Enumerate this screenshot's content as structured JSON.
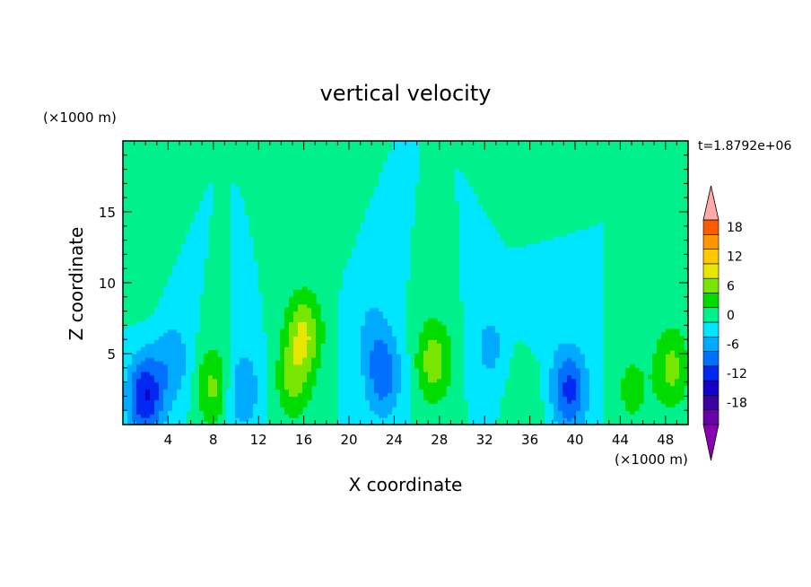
{
  "chart_data": {
    "type": "heatmap",
    "title": "vertical velocity",
    "xlabel": "X coordinate",
    "ylabel": "Z coordinate",
    "x_unit": "(×1000 m)",
    "y_unit": "(×1000 m)",
    "time_label": "t=1.8792e+06",
    "xlim": [
      0,
      50
    ],
    "ylim": [
      0,
      20
    ],
    "x_ticks": [
      4,
      8,
      12,
      16,
      20,
      24,
      28,
      32,
      36,
      40,
      44,
      48
    ],
    "y_ticks": [
      5,
      10,
      15
    ],
    "colorbar": {
      "levels": [
        -21,
        -18,
        -15,
        -12,
        -9,
        -6,
        -3,
        0,
        3,
        6,
        9,
        12,
        15,
        18,
        21
      ],
      "tick_values": [
        18,
        12,
        6,
        0,
        -6,
        -12,
        -18
      ],
      "colors": [
        "#6a00aa",
        "#3c00a0",
        "#1400c8",
        "#0028f0",
        "#0070ff",
        "#00aaff",
        "#00e6ff",
        "#00f08c",
        "#00dc00",
        "#78e600",
        "#e6e600",
        "#ffc800",
        "#ff9600",
        "#ff5a00",
        "#ff1e00"
      ],
      "under_color": "#8c00b4",
      "over_color": "#ffaaaa"
    },
    "features": [
      {
        "x": 2.0,
        "z": 2.0,
        "w": -12
      },
      {
        "x": 4.5,
        "z": 4.5,
        "w": -5
      },
      {
        "x": 8.0,
        "z": 2.7,
        "w": 7
      },
      {
        "x": 10.5,
        "z": 2.5,
        "w": -6
      },
      {
        "x": 16.0,
        "z": 6.5,
        "w": 9
      },
      {
        "x": 15.0,
        "z": 3.0,
        "w": 6
      },
      {
        "x": 17.5,
        "z": 14.5,
        "w": 1.5
      },
      {
        "x": 23.0,
        "z": 3.5,
        "w": -8
      },
      {
        "x": 22.0,
        "z": 7.0,
        "w": -3
      },
      {
        "x": 27.5,
        "z": 4.5,
        "w": 8
      },
      {
        "x": 32.5,
        "z": 5.5,
        "w": -4
      },
      {
        "x": 35.5,
        "z": 2.5,
        "w": 3
      },
      {
        "x": 37.0,
        "z": 8.0,
        "w": -3
      },
      {
        "x": 39.5,
        "z": 2.5,
        "w": -10
      },
      {
        "x": 45.0,
        "z": 2.5,
        "w": 4
      },
      {
        "x": 48.5,
        "z": 4.0,
        "w": 7
      },
      {
        "x": 49.0,
        "z": 12.0,
        "w": 1.5
      },
      {
        "x": 1.5,
        "z": 10.0,
        "w": 1.5
      },
      {
        "x": 36.5,
        "z": 15.5,
        "w": 0.5
      }
    ]
  }
}
